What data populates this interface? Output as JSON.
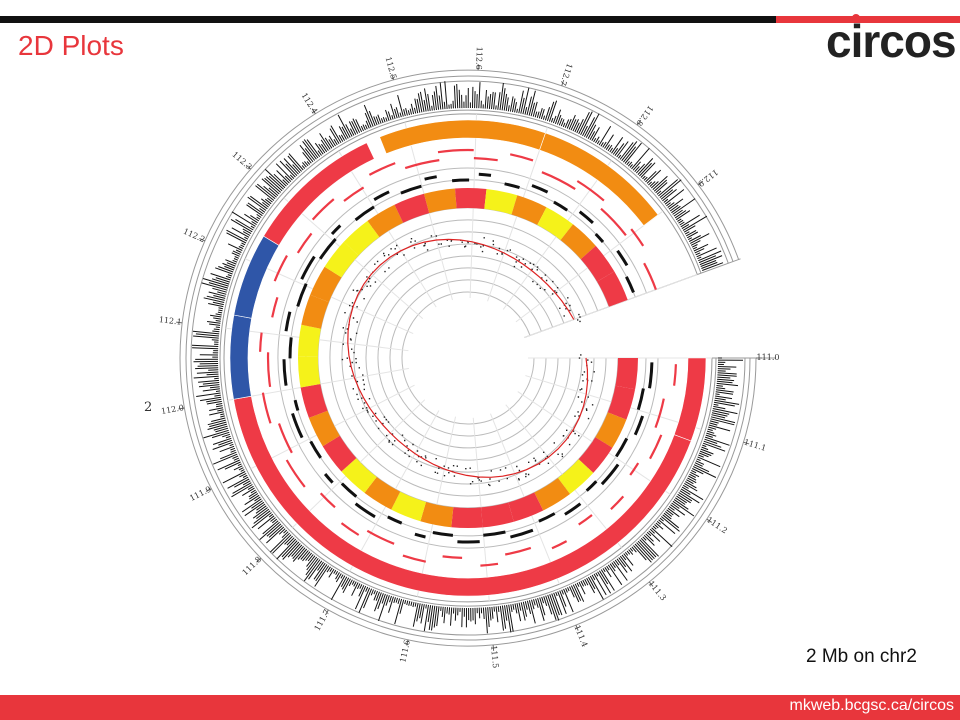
{
  "slide": {
    "title": "2D Plots",
    "logo_text": "circos",
    "caption": "2 Mb on chr2",
    "url": "mkweb.bcgsc.ca/circos"
  },
  "colors": {
    "brand_red": "#e8363c",
    "bar_black": "#111111",
    "track_red": "#ee3a46",
    "track_orange": "#f28c12",
    "track_yellow": "#f5f21a",
    "track_blue": "#2f56a8",
    "line_red": "#dd2222"
  },
  "figure": {
    "chromosome_label": "2",
    "ticks": [
      "111.0",
      "111.1",
      "111.2",
      "111.3",
      "111.4",
      "111.5",
      "111.6",
      "111.7",
      "111.8",
      "111.9",
      "112.0",
      "112.1",
      "112.2",
      "112.3",
      "112.4",
      "112.5",
      "112.6",
      "112.7",
      "112.8",
      "112.9"
    ]
  }
}
